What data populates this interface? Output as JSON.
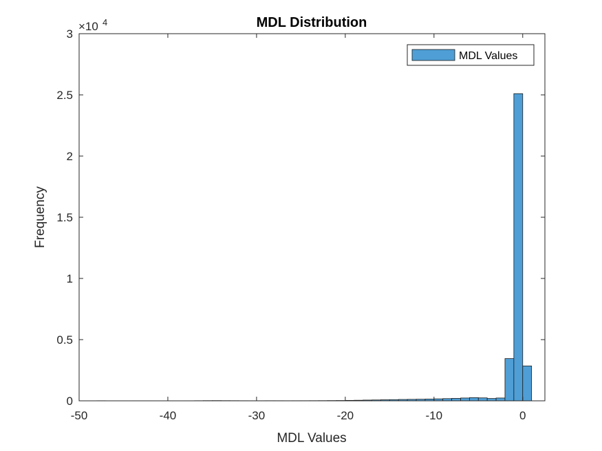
{
  "chart_data": {
    "type": "bar",
    "title": "MDL Distribution",
    "xlabel": "MDL Values",
    "ylabel": "Frequency",
    "xlim": [
      -50,
      2.5
    ],
    "ylim": [
      0,
      30000
    ],
    "xticks": [
      -50,
      -40,
      -30,
      -20,
      -10,
      0
    ],
    "xtick_labels": [
      "-50",
      "-40",
      "-30",
      "-20",
      "-10",
      "0"
    ],
    "yticks": [
      0,
      5000,
      10000,
      15000,
      20000,
      25000,
      30000
    ],
    "ytick_labels": [
      "0",
      "0.5",
      "1",
      "1.5",
      "2",
      "2.5",
      "3"
    ],
    "y_exponent_base": "×10",
    "y_exponent_power": "4",
    "grid": false,
    "legend_position": "top-right",
    "bar_color": "#4f9fd6",
    "bar_edge_color": "#1a1a1a",
    "bin_width": 1,
    "series": [
      {
        "name": "MDL Values",
        "bins": [
          [
            -48,
            8
          ],
          [
            -47,
            5
          ],
          [
            -46,
            4
          ],
          [
            -45,
            5
          ],
          [
            -44,
            6
          ],
          [
            -43,
            6
          ],
          [
            -42,
            4
          ],
          [
            -41,
            4
          ],
          [
            -40,
            5
          ],
          [
            -39,
            4
          ],
          [
            -38,
            6
          ],
          [
            -37,
            10
          ],
          [
            -36,
            15
          ],
          [
            -35,
            18
          ],
          [
            -34,
            14
          ],
          [
            -33,
            12
          ],
          [
            -32,
            9
          ],
          [
            -31,
            8
          ],
          [
            -30,
            8
          ],
          [
            -29,
            10
          ],
          [
            -28,
            9
          ],
          [
            -27,
            8
          ],
          [
            -26,
            9
          ],
          [
            -25,
            10
          ],
          [
            -24,
            12
          ],
          [
            -23,
            15
          ],
          [
            -22,
            20
          ],
          [
            -21,
            25
          ],
          [
            -20,
            35
          ],
          [
            -19,
            45
          ],
          [
            -18,
            60
          ],
          [
            -17,
            70
          ],
          [
            -16,
            85
          ],
          [
            -15,
            95
          ],
          [
            -14,
            110
          ],
          [
            -13,
            120
          ],
          [
            -12,
            130
          ],
          [
            -11,
            145
          ],
          [
            -10,
            160
          ],
          [
            -9,
            180
          ],
          [
            -8,
            200
          ],
          [
            -7,
            230
          ],
          [
            -6,
            260
          ],
          [
            -5,
            240
          ],
          [
            -4,
            190
          ],
          [
            -3,
            230
          ],
          [
            -2,
            3450
          ],
          [
            -1,
            25100
          ],
          [
            0,
            2850
          ]
        ]
      }
    ]
  }
}
